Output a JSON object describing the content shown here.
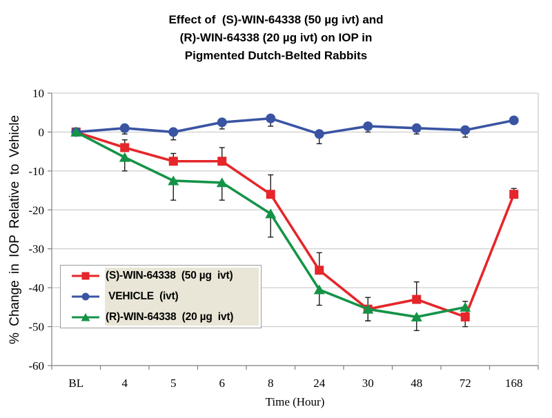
{
  "title": {
    "lines": [
      "Effect of  (S)-WIN-64338 (50 µg ivt) and",
      "(R)-WIN-64338 (20 µg ivt) on IOP in",
      "Pigmented Dutch-Belted Rabbits"
    ]
  },
  "chart_data": {
    "type": "line",
    "title": "Effect of (S)-WIN-64338 (50 µg ivt) and (R)-WIN-64338 (20 µg ivt) on IOP in Pigmented Dutch-Belted Rabbits",
    "xlabel": "Time (Hour)",
    "ylabel": "% Change in IOP Relative to Vehicle",
    "categories": [
      "BL",
      "4",
      "5",
      "6",
      "8",
      "24",
      "30",
      "48",
      "72",
      "168"
    ],
    "y_ticks": [
      10,
      0,
      -10,
      -20,
      -30,
      -40,
      -50,
      -60
    ],
    "ylim": [
      -60,
      10
    ],
    "grid": true,
    "legend_position": "inside-bottom-left",
    "series": [
      {
        "name": "(S)-WIN-64338  (50 µg  ivt)",
        "marker": "square",
        "color": "#e5262a",
        "values": [
          0,
          -4,
          -7.5,
          -7.5,
          -16,
          -35.5,
          -45.5,
          -43,
          -47.5,
          -16
        ],
        "err_up": [
          0,
          2,
          2,
          3.5,
          5,
          4.5,
          3,
          4.5,
          0,
          1.5
        ],
        "err_down": [
          0,
          0,
          0,
          0,
          0,
          0,
          3,
          0,
          2.5,
          0
        ]
      },
      {
        "name": " VEHICLE  (ivt)",
        "marker": "circle",
        "color": "#3a54a3",
        "values": [
          0,
          1,
          0,
          2.5,
          3.5,
          -0.5,
          1.5,
          1,
          0.5,
          3
        ],
        "err_up": [
          0,
          0,
          0,
          0,
          0,
          0,
          0,
          0,
          0,
          0
        ],
        "err_down": [
          0,
          1.5,
          2,
          1.7,
          2,
          2.5,
          1.5,
          1.5,
          1.8,
          0
        ]
      },
      {
        "name": "(R)-WIN-64338  (20 µg  ivt)",
        "marker": "triangle",
        "color": "#149347",
        "values": [
          0,
          -6.5,
          -12.5,
          -13,
          -21,
          -40.5,
          -45.5,
          -47.5,
          -45,
          null
        ],
        "err_up": [
          0,
          0,
          0,
          0,
          0,
          0,
          0,
          0,
          1.5,
          null
        ],
        "err_down": [
          0,
          3.5,
          5,
          4.5,
          6,
          4,
          3,
          3.5,
          0,
          null
        ]
      }
    ],
    "colors": {
      "gridline": "#c2c2c2",
      "axis": "#7e7e7e",
      "error_bar": "#1a1a1a",
      "legend_highlight": "#e9e6d7"
    }
  }
}
